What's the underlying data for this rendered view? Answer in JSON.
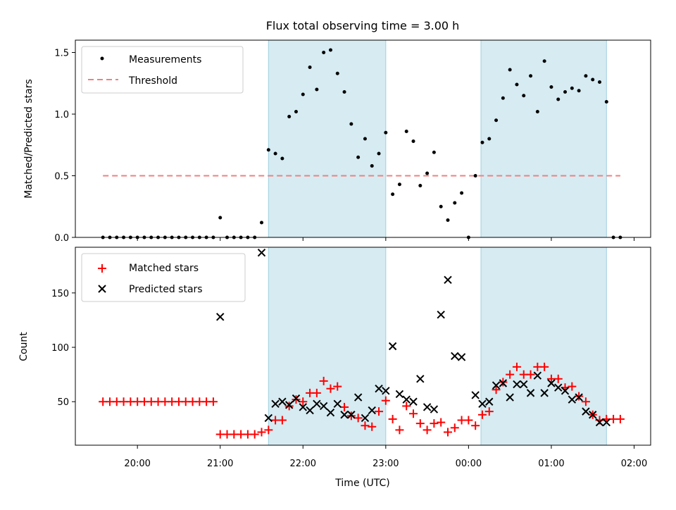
{
  "chart_data": [
    {
      "type": "scatter",
      "title": "Flux total observing time = 3.00 h",
      "xlabel": "",
      "ylabel": "Matched/Predicted stars",
      "ylim": [
        0,
        1.6
      ],
      "yticks": [
        "0.0",
        "0.5",
        "1.0",
        "1.5"
      ],
      "threshold": 0.5,
      "legend_position": "top-left",
      "legend": [
        "Measurements",
        "Threshold"
      ],
      "shaded_intervals": [
        [
          "21:35",
          "23:00"
        ],
        [
          "00:09",
          "01:40"
        ]
      ],
      "series": [
        {
          "name": "Measurements",
          "color": "#000000",
          "x": [
            "19:35",
            "19:40",
            "19:45",
            "19:50",
            "19:55",
            "20:00",
            "20:05",
            "20:10",
            "20:15",
            "20:20",
            "20:25",
            "20:30",
            "20:35",
            "20:40",
            "20:45",
            "20:50",
            "20:55",
            "21:00",
            "21:05",
            "21:10",
            "21:15",
            "21:20",
            "21:25",
            "21:30",
            "21:35",
            "21:40",
            "21:45",
            "21:50",
            "21:55",
            "22:00",
            "22:05",
            "22:10",
            "22:15",
            "22:20",
            "22:25",
            "22:30",
            "22:35",
            "22:40",
            "22:45",
            "22:50",
            "22:55",
            "23:00",
            "23:05",
            "23:10",
            "23:15",
            "23:20",
            "23:25",
            "23:30",
            "23:35",
            "23:40",
            "23:45",
            "23:50",
            "23:55",
            "00:00",
            "00:05",
            "00:10",
            "00:15",
            "00:20",
            "00:25",
            "00:30",
            "00:35",
            "00:40",
            "00:45",
            "00:50",
            "00:55",
            "01:00",
            "01:05",
            "01:10",
            "01:15",
            "01:20",
            "01:25",
            "01:30",
            "01:35",
            "01:40",
            "01:45",
            "01:50"
          ],
          "y": [
            0,
            0,
            0,
            0,
            0,
            0,
            0,
            0,
            0,
            0,
            0,
            0,
            0,
            0,
            0,
            0,
            0,
            0.16,
            0,
            0,
            0,
            0,
            0,
            0.12,
            0.71,
            0.68,
            0.64,
            0.98,
            1.02,
            1.16,
            1.38,
            1.2,
            1.5,
            1.52,
            1.33,
            1.18,
            0.92,
            0.65,
            0.8,
            0.58,
            0.68,
            0.85,
            0.35,
            0.43,
            0.86,
            0.78,
            0.42,
            0.52,
            0.69,
            0.25,
            0.14,
            0.28,
            0.36,
            0,
            0.5,
            0.77,
            0.8,
            0.95,
            1.13,
            1.36,
            1.24,
            1.15,
            1.31,
            1.02,
            1.43,
            1.22,
            1.12,
            1.18,
            1.21,
            1.19,
            1.31,
            1.28,
            1.26,
            1.1,
            0,
            0
          ]
        },
        {
          "name": "Threshold",
          "color": "#f08080",
          "x": [
            "19:35",
            "01:50"
          ],
          "y": [
            0.5,
            0.5
          ]
        }
      ]
    },
    {
      "type": "scatter",
      "xlabel": "Time (UTC)",
      "ylabel": "Count",
      "ylim": [
        10,
        192
      ],
      "yticks": [
        "50",
        "100",
        "150"
      ],
      "xticks": [
        "20:00",
        "21:00",
        "22:00",
        "23:00",
        "00:00",
        "01:00",
        "02:00"
      ],
      "legend_position": "top-left",
      "legend": [
        "Matched stars",
        "Predicted stars"
      ],
      "shaded_intervals": [
        [
          "21:35",
          "23:00"
        ],
        [
          "00:09",
          "01:40"
        ]
      ],
      "series": [
        {
          "name": "Matched stars",
          "color": "#ff0000",
          "x": [
            "19:35",
            "19:40",
            "19:45",
            "19:50",
            "19:55",
            "20:00",
            "20:05",
            "20:10",
            "20:15",
            "20:20",
            "20:25",
            "20:30",
            "20:35",
            "20:40",
            "20:45",
            "20:50",
            "20:55",
            "21:00",
            "21:05",
            "21:10",
            "21:15",
            "21:20",
            "21:25",
            "21:30",
            "21:35",
            "21:40",
            "21:45",
            "21:50",
            "21:55",
            "22:00",
            "22:05",
            "22:10",
            "22:15",
            "22:20",
            "22:25",
            "22:30",
            "22:35",
            "22:40",
            "22:45",
            "22:50",
            "22:55",
            "23:00",
            "23:05",
            "23:10",
            "23:15",
            "23:20",
            "23:25",
            "23:30",
            "23:35",
            "23:40",
            "23:45",
            "23:50",
            "23:55",
            "00:00",
            "00:05",
            "00:10",
            "00:15",
            "00:20",
            "00:25",
            "00:30",
            "00:35",
            "00:40",
            "00:45",
            "00:50",
            "00:55",
            "01:00",
            "01:05",
            "01:10",
            "01:15",
            "01:20",
            "01:25",
            "01:30",
            "01:35",
            "01:40",
            "01:45",
            "01:50"
          ],
          "y": [
            50,
            50,
            50,
            50,
            50,
            50,
            50,
            50,
            50,
            50,
            50,
            50,
            50,
            50,
            50,
            50,
            50,
            20,
            20,
            20,
            20,
            20,
            20,
            22,
            24,
            33,
            33,
            46,
            52,
            50,
            58,
            58,
            69,
            62,
            64,
            45,
            37,
            35,
            28,
            27,
            41,
            51,
            34,
            24,
            46,
            39,
            30,
            24,
            30,
            31,
            22,
            26,
            33,
            33,
            28,
            38,
            41,
            61,
            68,
            75,
            82,
            75,
            75,
            82,
            82,
            71,
            71,
            63,
            64,
            55,
            50,
            38,
            33,
            34,
            34,
            34
          ]
        },
        {
          "name": "Predicted stars",
          "color": "#000000",
          "x": [
            "21:00",
            "21:30",
            "21:35",
            "21:40",
            "21:45",
            "21:50",
            "21:55",
            "22:00",
            "22:05",
            "22:10",
            "22:15",
            "22:20",
            "22:25",
            "22:30",
            "22:35",
            "22:40",
            "22:45",
            "22:50",
            "22:55",
            "23:00",
            "23:05",
            "23:10",
            "23:15",
            "23:20",
            "23:25",
            "23:30",
            "23:35",
            "23:40",
            "23:45",
            "23:50",
            "23:55",
            "00:05",
            "00:10",
            "00:15",
            "00:20",
            "00:25",
            "00:30",
            "00:35",
            "00:40",
            "00:45",
            "00:50",
            "00:55",
            "01:00",
            "01:05",
            "01:10",
            "01:15",
            "01:20",
            "01:25",
            "01:30",
            "01:35",
            "01:40"
          ],
          "y": [
            128,
            187,
            35,
            48,
            50,
            47,
            53,
            45,
            42,
            48,
            46,
            40,
            48,
            38,
            38,
            54,
            35,
            42,
            62,
            60,
            101,
            57,
            52,
            50,
            71,
            45,
            43,
            130,
            162,
            92,
            91,
            56,
            48,
            50,
            65,
            67,
            54,
            66,
            66,
            58,
            74,
            58,
            67,
            63,
            60,
            52,
            54,
            41,
            38,
            31,
            31
          ]
        }
      ]
    }
  ]
}
